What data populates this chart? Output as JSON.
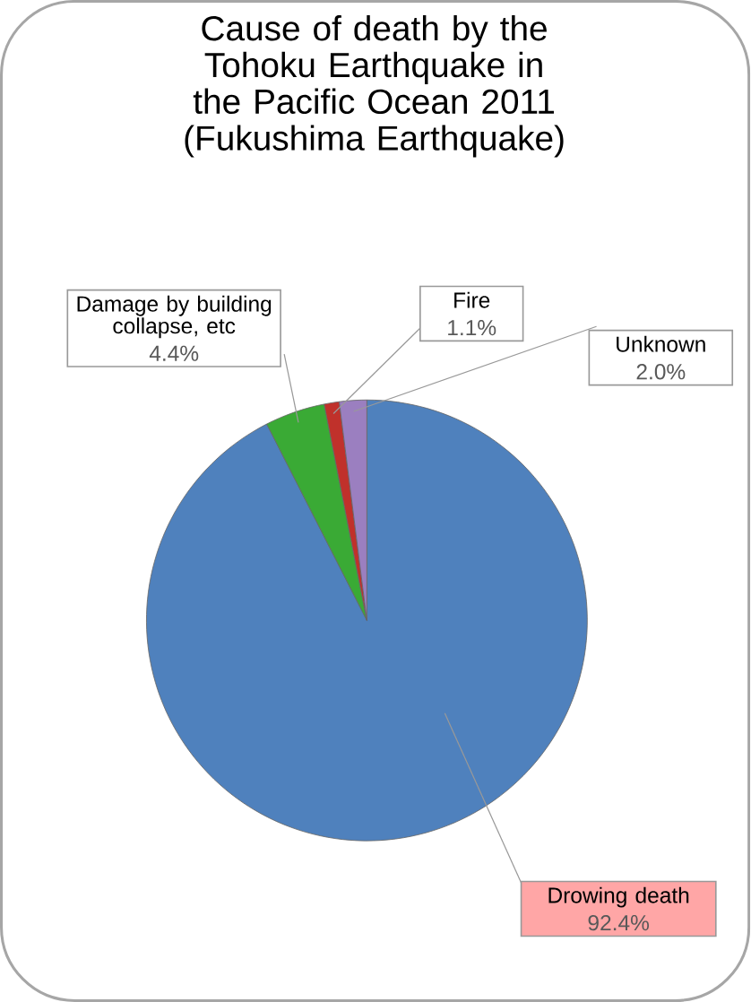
{
  "chart_data": {
    "type": "pie",
    "title": "Cause of death by the Tohoku Earthquake in the Pacific Ocean 2011 (Fukushima Earthquake)",
    "categories": [
      "Drowing death",
      "Damage by building collapse, etc",
      "Fire",
      "Unknown"
    ],
    "values": [
      92.4,
      4.4,
      1.1,
      2.0
    ],
    "value_labels": [
      "92.4%",
      "4.4%",
      "1.1%",
      "2.0%"
    ],
    "colors": [
      "#4f81bd",
      "#3aaa35",
      "#c0312b",
      "#9b7fc0"
    ]
  }
}
